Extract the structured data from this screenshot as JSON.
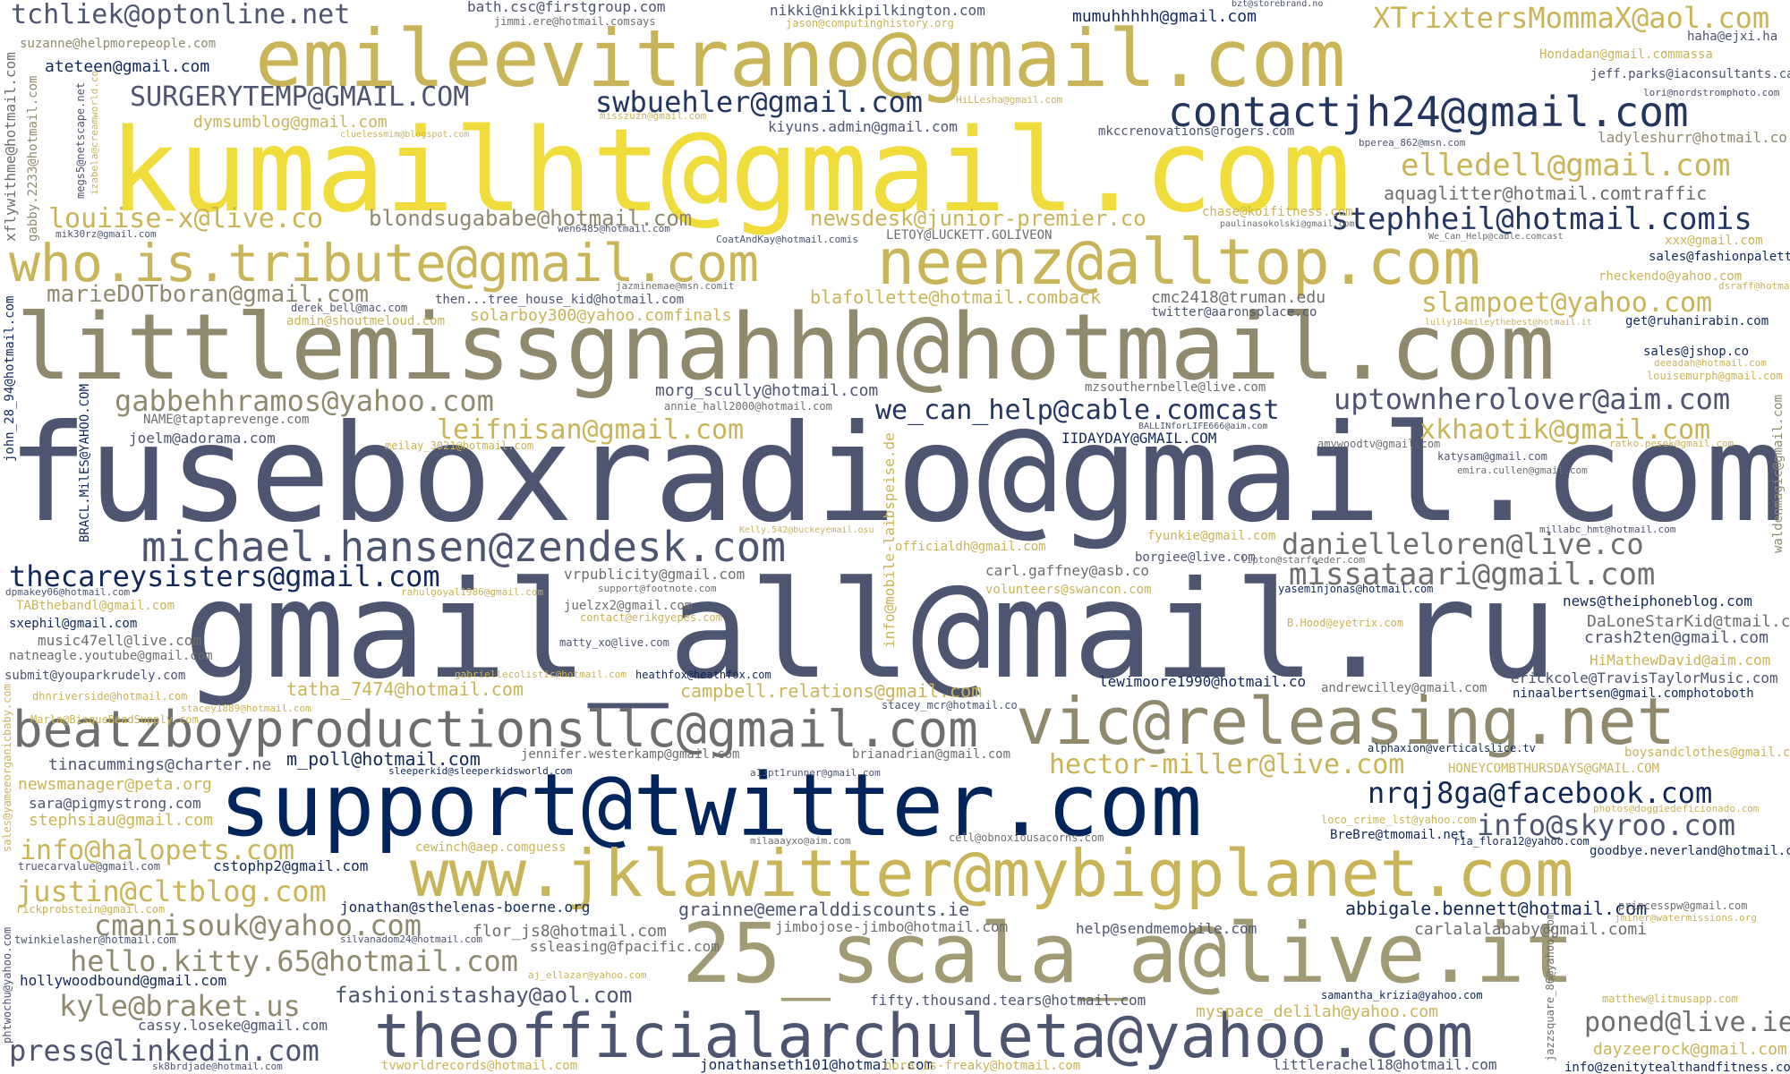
{
  "palette": {
    "gold": "#c9b458",
    "yellow": "#f0dc3a",
    "olive": "#8f8a6e",
    "slate": "#4d5570",
    "navy": "#12285a",
    "dark_navy": "#00245c"
  },
  "words": {
    "w01": "fuseboxradio@gmail.com",
    "w02": "gmail_all@mail.ru",
    "w03": "kumailht@gmail.com",
    "w04": "littlemissgnahhh@hotmail.com",
    "w05": "emileevitrano@gmail.com",
    "w06": "support@twitter.com",
    "w07": "www.jklawitter@mybigplanet.com",
    "w08": "25_scala_a@live.it",
    "w09": "theofficialarchuleta@yahoo.com",
    "w10": "beatzboyproductionsllc@gmail.com",
    "w11": "vic@releasing.net",
    "w12": "neenz@alltop.com",
    "w13": "who.is.tribute@gmail.com",
    "w14": "michael.hansen@zendesk.com",
    "w15": "contactjh24@gmail.com",
    "w16": "tchliek@optonline.net",
    "w17": "XTrixtersMommaX@aol.com",
    "w18": "SURGERYTEMP@GMAIL.COM",
    "w19": "swbuehler@gmail.com",
    "w20": "elledell@gmail.com",
    "w21": "stephheil@hotmail.comis",
    "w22": "louiise-x@live.co",
    "w23": "blondsugababe@hotmail.com",
    "w24": "newsdesk@junior-premier.co",
    "w25": "marieDOTboran@gmail.com",
    "w26": "slampoet@yahoo.com",
    "w27": "gabbehhramos@yahoo.com",
    "w28": "uptownherolover@aim.com",
    "w29": "we_can_help@cable.comcast",
    "w30": "leifnisan@gmail.com",
    "w31": "xkhaotik@gmail.com",
    "w32": "danielleloren@live.co",
    "w33": "missataari@gmail.com",
    "w34": "thecareysisters@gmail.com",
    "w35": "hector-miller@live.com",
    "w36": "nrqj8ga@facebook.com",
    "w37": "info@skyroo.com",
    "w38": "info@halopets.com",
    "w39": "justin@cltblog.com",
    "w40": "cmanisouk@yahoo.com",
    "w41": "hello.kitty.65@hotmail.com",
    "w42": "kyle@braket.us",
    "w43": "press@linkedin.com",
    "w44": "poned@live.ie",
    "w45": "fashionistashay@aol.com",
    "w46": "abbigale.bennett@hotmail.com",
    "w47": "grainne@emeralddiscounts.ie",
    "w48": "blafollette@hotmail.comback",
    "w49": "aquaglitter@hotmail.comtraffic",
    "w50": "kiyuns.admin@gmail.com",
    "w51": "ateteen@gmail.com",
    "w52": "mumuhhhhh@gmail.com",
    "w53": "bath.csc@firstgroup.com",
    "w54": "nikki@nikkipilkington.com",
    "w55": "morg_scully@hotmail.com",
    "w56": "solarboy300@yahoo.comfinals",
    "w57": "then...tree_house_kid@hotmail.com",
    "w58": "cmc2418@truman.edu",
    "w59": "twitter@aaronsplace.co",
    "w60": "IIDAYDAY@GMAIL.COM",
    "w61": "mzsouthernbelle@live.com",
    "w62": "joelm@adorama.com",
    "w63": "NAME@taptaprevenge.com",
    "w64": "dymsumblog@gmail.com",
    "w65": "suzanne@helpmorepeople.com",
    "w66": "haha@ejxi.ha",
    "w67": "Hondadan@gmail.commassa",
    "w68": "jeff.parks@iaconsultants.ca",
    "w69": "ladyleshurr@hotmail.co",
    "w70": "mkccrenovations@rogers.com",
    "w71": "chase@koifitness.com",
    "w72": "LETOY@LUCKETT.GOLIVEON",
    "w73": "CoatAndKay@hotmail.comis",
    "w74": "sales@fashionpalette.com",
    "w75": "get@ruhanirabin.com",
    "w76": "fyunkie@gmail.com",
    "w77": "borgiee@live.com",
    "w78": "carl.gaffney@asb.co",
    "w79": "volunteers@swancon.com",
    "w80": "vrpublicity@gmail.com",
    "w81": "campbell.relations@gmail.com",
    "w82": "tatha_7474@hotmail.com",
    "w83": "lewimoore1990@hotmail.co",
    "w84": "andrewcilley@gmail.com",
    "w85": "erickcole@TravisTaylorMusic.com",
    "w86": "ninaalbertsen@gmail.comphotoboth",
    "w87": "news@theiphoneblog.com",
    "w88": "DaLoneStarKid@tmail.com",
    "w89": "crash2ten@gmail.com",
    "w90": "HiMathewDavid@aim.com",
    "w91": "boysandclothes@gmail.com",
    "w92": "HONEYCOMBTHURSDAYS@GMAIL.COM",
    "w93": "goodbye.neverland@hotmail.com",
    "w94": "BreBre@tmomail.net",
    "w95": "carlalalababy@gmail.comi",
    "w96": "help@sendmemobile.com",
    "w97": "flor_js8@hotmail.com",
    "w98": "jimbojose-jimbo@hotmail.com",
    "w99": "ssleasing@fpacific.com",
    "w100": "jonathan@sthelenas-boerne.org",
    "w101": "fifty.thousand.tears@hotmail.com",
    "w102": "myspace_delilah@yahoo.com",
    "w103": "dayzeerock@gmail.com",
    "w104": "littlerachel18@hotmail.com",
    "w105": "jonathanseth101@hotmail.com",
    "w106": "nora-is-freaky@hotmail.com",
    "w107": "tvworldrecords@hotmail.com",
    "w108": "cassy.loseke@gmail.com",
    "w109": "hollywoodbound@gmail.com",
    "w110": "info@zenitytealthandfitness.com",
    "w111": "newsmanager@peta.org",
    "w112": "sara@pigmystrong.com",
    "w113": "stephsiau@gmail.com",
    "w114": "cstophp2@gmail.com",
    "w115": "tinacummings@charter.ne",
    "w116": "m_poll@hotmail.com",
    "w117": "jennifer.westerkamp@gmail.com",
    "w118": "brianadrian@gmail.com",
    "w119": "stacey_mcr@hotmail.co",
    "w120": "sxephil@gmail.com",
    "w121": "music47ell@live.com",
    "w122": "natneagle.youtube@gmail.com",
    "w123": "submit@youparkrudely.com",
    "w124": "TABthebandl@gmail.com",
    "w125": "juelzx2@gmail.com",
    "w126": "contact@erikgyepes.com",
    "w127": "matty_xo@live.com",
    "w128": "heathfox@heathfox.com",
    "w129": "cewinch@aep.comguess",
    "w130": "cell@obnoxiousacorns.com",
    "w131": "jazminemae@msn.comit",
    "w132": "derek_bell@mac.com",
    "w133": "admin@shoutmeloud.com",
    "w134": "annie_hall2000@hotmail.com",
    "w135": "meilay_3021@hotmail.com",
    "w136": "katysam@gmail.com",
    "w137": "emira.cullen@gmail.com",
    "w138": "amywoodtv@gmail.com",
    "w139": "sales@jshop.co",
    "w140": "louisemurph@gmail.com",
    "w141": "deeadah@hotmail.com",
    "w142": "rheckendo@yahoo.com",
    "w143": "xxx@gmail.com",
    "w144": "officialdh@gmail.com",
    "w145": "yaseminjonas@hotmail.com",
    "w146": "B.Hood@eyetrix.com",
    "w147": "lipton@starfeeder.com",
    "w148": "millabc_hmt@hotmail.com",
    "w149": "samantha_krizia@yahoo.com",
    "w150": "matthew@litmusapp.com",
    "w151": "princesspw@gmail.com",
    "w152": "aj_ellazar@yahoo.com",
    "w153": "silvanadom24@hotmail.com",
    "w154": "twinkielasher@hotmail.com",
    "w155": "rickprobstein@gmail.com",
    "w156": "truecarvalue@gmail.com",
    "w157": "sk8brdjade@hotmail.com",
    "w158": "milaaayxo@aim.com",
    "w159": "loco_crime_lst@yahoo.com",
    "w160": "ria_flora12@yahoo.com",
    "w161": "alphaxion@verticalslice.tv",
    "w162": "a13pt1runner@gmail.com",
    "w163": "sleeperkid@sleeperkidsworld.com",
    "w164": "gabriellecolistic@hotmail.com",
    "w165": "rahulgoyal1986@gmail.com",
    "w166": "stacey1889@hotmail.com",
    "w167": "dhnriverside@hotmail.com",
    "w168": "Marla@BisqueBeadSupply.com",
    "w169": "dpmakey06@hotmail.com",
    "w170": "jimmi.ere@hotmail.comsays",
    "w171": "jason@computinghistory.org",
    "w172": "misszuzn@gmail.com",
    "w173": "cluelessmim@blogspot.com",
    "w174": "HiLLesha@gmail.com",
    "w175": "bzt@storebrand.no",
    "w176": "lori@nordstromphoto.com",
    "w177": "bperea_862@msn.com",
    "w178": "paulinasokolski@gmail.com",
    "w179": "We_Can_Help@cable.comcast",
    "w180": "wen6485@hotmail.com",
    "w181": "mik30rz@gmail.com",
    "w182": "lully104mileythebest@hotmail.it",
    "w183": "BALLINforLIFE666@aim.com",
    "w184": "ratko.pesek@gmail.com",
    "w185": "photos@doggiedeficionado.com",
    "w186": "jminer@watermissions.org",
    "w187": "support@footnote.com",
    "w188": "Kelly.542@buckeyemail.osu",
    "w189": "xflywithme@hotmail.com",
    "w190": "gabby.2233@hotmail.com",
    "w191": "megs5@netscape.net",
    "w192": "izabela@creamworld.co",
    "w193": "john_28_94@hotmail.com",
    "w194": "BRACL.MilES@YAHOO.COM",
    "w195": "info@mobile-laibspeise.de",
    "w196": "sales@yameeorganicbaby.com",
    "w197": "phtwochu@yahoo.com",
    "w198": "jazzsquare_86@yahoo.com",
    "w199": "waldenmagic@gmail.com",
    "w200": "dsraff@hotmail.com"
  }
}
